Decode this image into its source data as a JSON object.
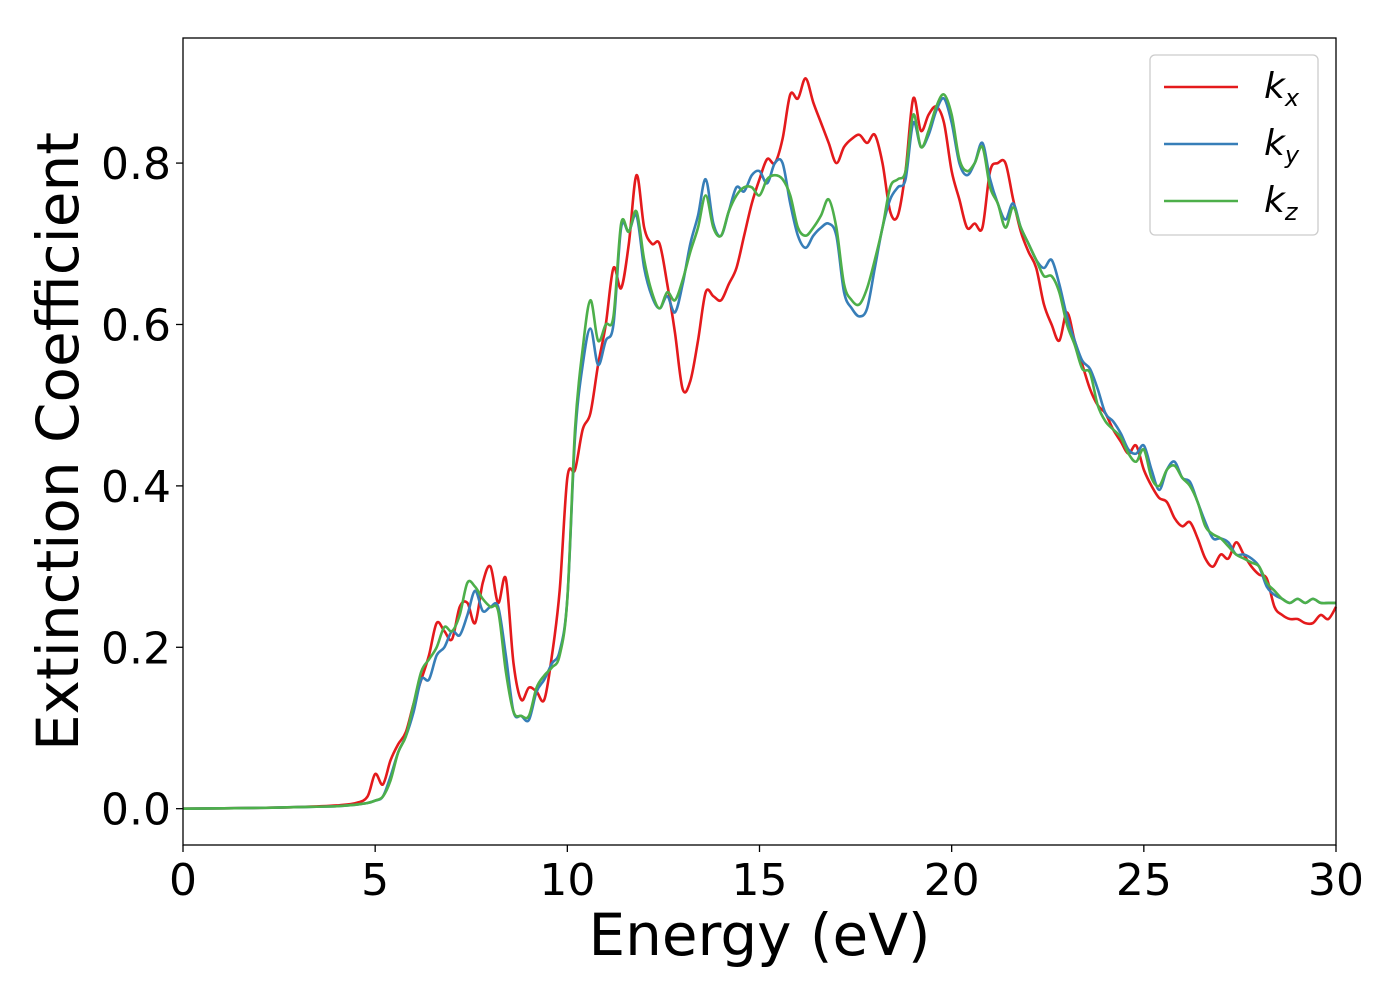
{
  "chart_data": {
    "type": "line",
    "xlabel": "Energy (eV)",
    "ylabel": "Extinction Coefficient",
    "xlim": [
      0,
      30
    ],
    "ylim": [
      -0.045,
      0.955
    ],
    "xticks": [
      0,
      5,
      10,
      15,
      20,
      25,
      30
    ],
    "xtick_labels": [
      "0",
      "5",
      "10",
      "15",
      "20",
      "25",
      "30"
    ],
    "yticks": [
      0.0,
      0.2,
      0.4,
      0.6,
      0.8
    ],
    "ytick_labels": [
      "0.0",
      "0.2",
      "0.4",
      "0.6",
      "0.8"
    ],
    "grid": false,
    "legend_position": "top-right",
    "series": [
      {
        "name": "k",
        "subscript": "x",
        "color": "#e41a1c",
        "x": [
          0,
          2,
          3,
          4,
          4.5,
          4.8,
          5.0,
          5.2,
          5.4,
          5.6,
          5.8,
          6.0,
          6.2,
          6.4,
          6.6,
          6.8,
          7.0,
          7.2,
          7.4,
          7.6,
          7.8,
          8.0,
          8.2,
          8.4,
          8.6,
          8.8,
          9.0,
          9.2,
          9.4,
          9.6,
          9.8,
          10.0,
          10.2,
          10.4,
          10.6,
          10.8,
          11.0,
          11.2,
          11.4,
          11.6,
          11.8,
          12.0,
          12.2,
          12.4,
          12.6,
          12.8,
          13.0,
          13.2,
          13.4,
          13.6,
          13.8,
          14.0,
          14.2,
          14.4,
          14.6,
          14.8,
          15.0,
          15.2,
          15.4,
          15.6,
          15.8,
          16.0,
          16.2,
          16.4,
          16.6,
          16.8,
          17.0,
          17.2,
          17.4,
          17.6,
          17.8,
          18.0,
          18.2,
          18.4,
          18.6,
          18.8,
          19.0,
          19.2,
          19.4,
          19.6,
          19.8,
          20.0,
          20.2,
          20.4,
          20.6,
          20.8,
          21.0,
          21.2,
          21.4,
          21.6,
          21.8,
          22.0,
          22.2,
          22.4,
          22.6,
          22.8,
          23.0,
          23.2,
          23.4,
          23.6,
          23.8,
          24.0,
          24.2,
          24.4,
          24.6,
          24.8,
          25.0,
          25.2,
          25.4,
          25.6,
          25.8,
          26.0,
          26.2,
          26.4,
          26.6,
          26.8,
          27.0,
          27.2,
          27.4,
          27.6,
          27.8,
          28.0,
          28.2,
          28.4,
          28.6,
          28.8,
          29.0,
          29.2,
          29.4,
          29.6,
          29.8,
          30.0
        ],
        "y": [
          0,
          0.001,
          0.002,
          0.004,
          0.007,
          0.015,
          0.043,
          0.03,
          0.06,
          0.08,
          0.095,
          0.13,
          0.16,
          0.19,
          0.23,
          0.22,
          0.21,
          0.25,
          0.255,
          0.23,
          0.28,
          0.3,
          0.255,
          0.285,
          0.18,
          0.135,
          0.15,
          0.145,
          0.135,
          0.19,
          0.27,
          0.41,
          0.42,
          0.47,
          0.49,
          0.55,
          0.6,
          0.67,
          0.645,
          0.7,
          0.785,
          0.72,
          0.7,
          0.7,
          0.65,
          0.59,
          0.52,
          0.53,
          0.58,
          0.64,
          0.635,
          0.63,
          0.65,
          0.67,
          0.71,
          0.75,
          0.78,
          0.805,
          0.8,
          0.83,
          0.885,
          0.88,
          0.905,
          0.875,
          0.85,
          0.825,
          0.8,
          0.82,
          0.83,
          0.835,
          0.825,
          0.835,
          0.8,
          0.74,
          0.735,
          0.79,
          0.88,
          0.84,
          0.86,
          0.87,
          0.85,
          0.79,
          0.755,
          0.72,
          0.725,
          0.72,
          0.79,
          0.8,
          0.8,
          0.755,
          0.715,
          0.69,
          0.67,
          0.625,
          0.6,
          0.58,
          0.615,
          0.58,
          0.55,
          0.52,
          0.5,
          0.49,
          0.47,
          0.455,
          0.44,
          0.45,
          0.42,
          0.4,
          0.385,
          0.38,
          0.36,
          0.35,
          0.355,
          0.335,
          0.31,
          0.3,
          0.315,
          0.31,
          0.33,
          0.315,
          0.3,
          0.29,
          0.285,
          0.25,
          0.24,
          0.235,
          0.235,
          0.23,
          0.23,
          0.24,
          0.235,
          0.25
        ]
      },
      {
        "name": "k",
        "subscript": "y",
        "color": "#377eb8",
        "x": [
          0,
          2,
          3,
          4,
          4.5,
          4.8,
          5.0,
          5.2,
          5.4,
          5.6,
          5.8,
          6.0,
          6.2,
          6.4,
          6.6,
          6.8,
          7.0,
          7.2,
          7.4,
          7.6,
          7.8,
          8.0,
          8.2,
          8.4,
          8.6,
          8.8,
          9.0,
          9.2,
          9.4,
          9.6,
          9.8,
          10.0,
          10.2,
          10.4,
          10.6,
          10.8,
          11.0,
          11.2,
          11.4,
          11.6,
          11.8,
          12.0,
          12.2,
          12.4,
          12.6,
          12.8,
          13.0,
          13.2,
          13.4,
          13.6,
          13.8,
          14.0,
          14.2,
          14.4,
          14.6,
          14.8,
          15.0,
          15.2,
          15.4,
          15.6,
          15.8,
          16.0,
          16.2,
          16.4,
          16.6,
          16.8,
          17.0,
          17.2,
          17.4,
          17.6,
          17.8,
          18.0,
          18.2,
          18.4,
          18.6,
          18.8,
          19.0,
          19.2,
          19.4,
          19.6,
          19.8,
          20.0,
          20.2,
          20.4,
          20.6,
          20.8,
          21.0,
          21.2,
          21.4,
          21.6,
          21.8,
          22.0,
          22.2,
          22.4,
          22.6,
          22.8,
          23.0,
          23.2,
          23.4,
          23.6,
          23.8,
          24.0,
          24.2,
          24.4,
          24.6,
          24.8,
          25.0,
          25.2,
          25.4,
          25.6,
          25.8,
          26.0,
          26.2,
          26.4,
          26.6,
          26.8,
          27.0,
          27.2,
          27.4,
          27.6,
          27.8,
          28.0,
          28.2,
          28.4,
          28.6,
          28.8,
          29.0,
          29.2,
          29.4,
          29.6,
          29.8,
          30.0
        ],
        "y": [
          0,
          0.001,
          0.002,
          0.003,
          0.005,
          0.007,
          0.01,
          0.015,
          0.04,
          0.07,
          0.09,
          0.12,
          0.16,
          0.16,
          0.19,
          0.2,
          0.22,
          0.215,
          0.24,
          0.27,
          0.245,
          0.25,
          0.25,
          0.19,
          0.12,
          0.115,
          0.11,
          0.145,
          0.16,
          0.18,
          0.195,
          0.26,
          0.46,
          0.55,
          0.595,
          0.55,
          0.58,
          0.6,
          0.72,
          0.715,
          0.735,
          0.67,
          0.635,
          0.62,
          0.635,
          0.615,
          0.65,
          0.7,
          0.735,
          0.78,
          0.725,
          0.71,
          0.74,
          0.77,
          0.765,
          0.785,
          0.79,
          0.775,
          0.8,
          0.8,
          0.75,
          0.71,
          0.695,
          0.71,
          0.72,
          0.725,
          0.71,
          0.64,
          0.62,
          0.61,
          0.62,
          0.67,
          0.72,
          0.755,
          0.77,
          0.78,
          0.85,
          0.82,
          0.835,
          0.865,
          0.88,
          0.85,
          0.8,
          0.785,
          0.8,
          0.825,
          0.78,
          0.75,
          0.73,
          0.75,
          0.72,
          0.7,
          0.68,
          0.67,
          0.68,
          0.65,
          0.61,
          0.58,
          0.555,
          0.545,
          0.52,
          0.49,
          0.48,
          0.465,
          0.445,
          0.44,
          0.45,
          0.42,
          0.395,
          0.42,
          0.43,
          0.41,
          0.405,
          0.38,
          0.355,
          0.335,
          0.335,
          0.33,
          0.315,
          0.315,
          0.31,
          0.3,
          0.275,
          0.265,
          0.26,
          0.255,
          0.26,
          0.255,
          0.26,
          0.255,
          0.255,
          0.255
        ]
      },
      {
        "name": "k",
        "subscript": "z",
        "color": "#4daf4a",
        "x": [
          0,
          2,
          3,
          4,
          4.5,
          4.8,
          5.0,
          5.2,
          5.4,
          5.6,
          5.8,
          6.0,
          6.2,
          6.4,
          6.6,
          6.8,
          7.0,
          7.2,
          7.4,
          7.6,
          7.8,
          8.0,
          8.2,
          8.4,
          8.6,
          8.8,
          9.0,
          9.2,
          9.4,
          9.6,
          9.8,
          10.0,
          10.2,
          10.4,
          10.6,
          10.8,
          11.0,
          11.2,
          11.4,
          11.6,
          11.8,
          12.0,
          12.2,
          12.4,
          12.6,
          12.8,
          13.0,
          13.2,
          13.4,
          13.6,
          13.8,
          14.0,
          14.2,
          14.4,
          14.6,
          14.8,
          15.0,
          15.2,
          15.4,
          15.6,
          15.8,
          16.0,
          16.2,
          16.4,
          16.6,
          16.8,
          17.0,
          17.2,
          17.4,
          17.6,
          17.8,
          18.0,
          18.2,
          18.4,
          18.6,
          18.8,
          19.0,
          19.2,
          19.4,
          19.6,
          19.8,
          20.0,
          20.2,
          20.4,
          20.6,
          20.8,
          21.0,
          21.2,
          21.4,
          21.6,
          21.8,
          22.0,
          22.2,
          22.4,
          22.6,
          22.8,
          23.0,
          23.2,
          23.4,
          23.6,
          23.8,
          24.0,
          24.2,
          24.4,
          24.6,
          24.8,
          25.0,
          25.2,
          25.4,
          25.6,
          25.8,
          26.0,
          26.2,
          26.4,
          26.6,
          26.8,
          27.0,
          27.2,
          27.4,
          27.6,
          27.8,
          28.0,
          28.2,
          28.4,
          28.6,
          28.8,
          29.0,
          29.2,
          29.4,
          29.6,
          29.8,
          30.0
        ],
        "y": [
          0,
          0.001,
          0.002,
          0.003,
          0.005,
          0.007,
          0.01,
          0.015,
          0.035,
          0.07,
          0.09,
          0.13,
          0.17,
          0.185,
          0.2,
          0.225,
          0.22,
          0.24,
          0.28,
          0.275,
          0.26,
          0.25,
          0.245,
          0.17,
          0.12,
          0.115,
          0.115,
          0.15,
          0.165,
          0.175,
          0.19,
          0.26,
          0.47,
          0.57,
          0.63,
          0.58,
          0.6,
          0.61,
          0.725,
          0.715,
          0.74,
          0.68,
          0.64,
          0.62,
          0.64,
          0.63,
          0.655,
          0.69,
          0.72,
          0.76,
          0.72,
          0.71,
          0.74,
          0.76,
          0.77,
          0.77,
          0.76,
          0.78,
          0.785,
          0.78,
          0.76,
          0.72,
          0.71,
          0.72,
          0.735,
          0.755,
          0.72,
          0.65,
          0.63,
          0.625,
          0.645,
          0.68,
          0.72,
          0.77,
          0.78,
          0.79,
          0.86,
          0.82,
          0.84,
          0.87,
          0.885,
          0.86,
          0.805,
          0.79,
          0.8,
          0.82,
          0.77,
          0.75,
          0.72,
          0.745,
          0.72,
          0.7,
          0.68,
          0.66,
          0.66,
          0.64,
          0.6,
          0.575,
          0.545,
          0.54,
          0.5,
          0.48,
          0.47,
          0.46,
          0.44,
          0.43,
          0.445,
          0.41,
          0.4,
          0.42,
          0.425,
          0.41,
          0.4,
          0.38,
          0.35,
          0.34,
          0.335,
          0.325,
          0.315,
          0.31,
          0.305,
          0.3,
          0.28,
          0.27,
          0.26,
          0.255,
          0.26,
          0.255,
          0.26,
          0.255,
          0.255,
          0.255
        ]
      }
    ]
  }
}
